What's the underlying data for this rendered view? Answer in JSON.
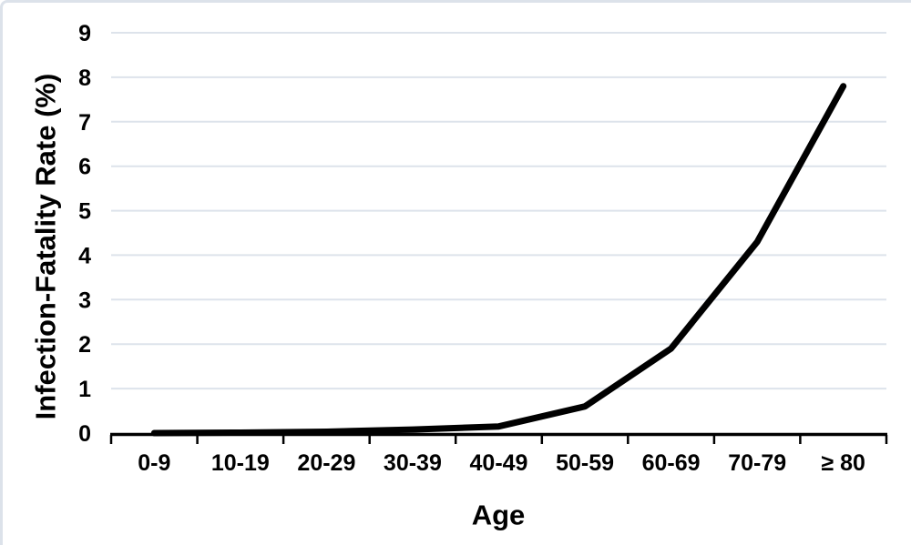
{
  "chart_data": {
    "type": "line",
    "title": "",
    "xlabel": "Age",
    "ylabel": "Infection-Fatality Rate (%)",
    "categories": [
      "0-9",
      "10-19",
      "20-29",
      "30-39",
      "40-49",
      "50-59",
      "60-69",
      "70-79",
      "≥ 80"
    ],
    "values": [
      0.0,
      0.01,
      0.03,
      0.08,
      0.15,
      0.6,
      1.9,
      4.3,
      7.8
    ],
    "series": [
      {
        "name": "Infection-Fatality Rate",
        "values": [
          0.0,
          0.01,
          0.03,
          0.08,
          0.15,
          0.6,
          1.9,
          4.3,
          7.8
        ]
      }
    ],
    "ylim": [
      0,
      9
    ],
    "yticks": [
      0,
      1,
      2,
      3,
      4,
      5,
      6,
      7,
      8,
      9
    ],
    "ytick_labels": [
      "0",
      "1",
      "2",
      "3",
      "4",
      "5",
      "6",
      "7",
      "8",
      "9"
    ],
    "grid": "horizontal gridlines at each integer",
    "legend_position": "none",
    "line_color": "#000000",
    "grid_color": "#dde3eb",
    "axis_color": "#000000",
    "text_color": "#000000",
    "background_color": "#ffffff",
    "card_border_color": "#dce2ea"
  }
}
